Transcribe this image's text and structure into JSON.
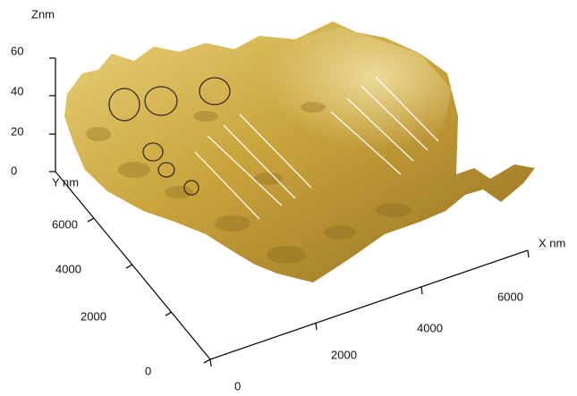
{
  "z_axis": {
    "label": "Znm",
    "ticks": [
      60,
      40,
      20,
      0
    ]
  },
  "y_axis": {
    "label": "Y nm",
    "ticks": [
      6000,
      4000,
      2000,
      0
    ]
  },
  "x_axis": {
    "label": "X nm",
    "ticks": [
      0,
      2000,
      4000,
      6000
    ]
  }
}
